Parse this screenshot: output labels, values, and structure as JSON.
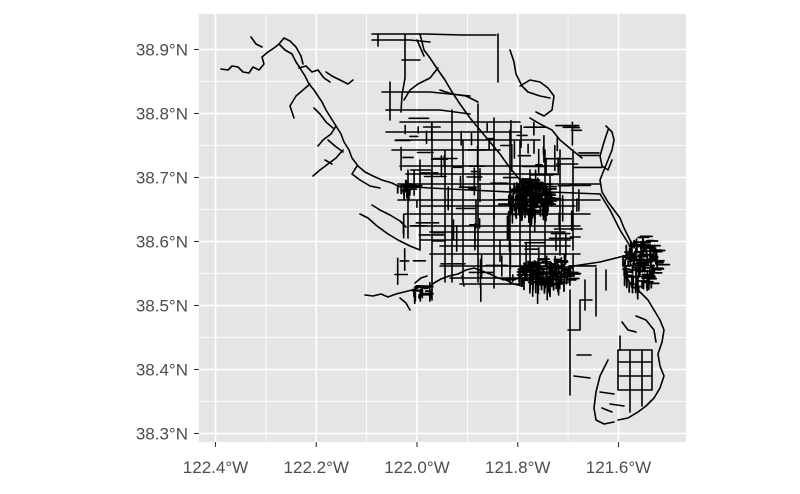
{
  "map": {
    "x_ticks": [
      {
        "value": -122.4,
        "label": "122.4°W"
      },
      {
        "value": -122.2,
        "label": "122.2°W"
      },
      {
        "value": -122.0,
        "label": "122.0°W"
      },
      {
        "value": -121.8,
        "label": "121.8°W"
      },
      {
        "value": -121.6,
        "label": "121.6°W"
      }
    ],
    "y_ticks": [
      {
        "value": 38.3,
        "label": "38.3°N"
      },
      {
        "value": 38.4,
        "label": "38.4°N"
      },
      {
        "value": 38.5,
        "label": "38.5°N"
      },
      {
        "value": 38.6,
        "label": "38.6°N"
      },
      {
        "value": 38.7,
        "label": "38.7°N"
      },
      {
        "value": 38.8,
        "label": "38.8°N"
      },
      {
        "value": 38.9,
        "label": "38.9°N"
      }
    ],
    "lon_range": [
      -122.43,
      -121.43
    ],
    "lat_range": [
      38.285,
      38.93
    ],
    "colors": {
      "panel": "#e5e5e5",
      "grid": "#ffffff",
      "roads": "#000000",
      "text": "#4d4d4d"
    }
  }
}
